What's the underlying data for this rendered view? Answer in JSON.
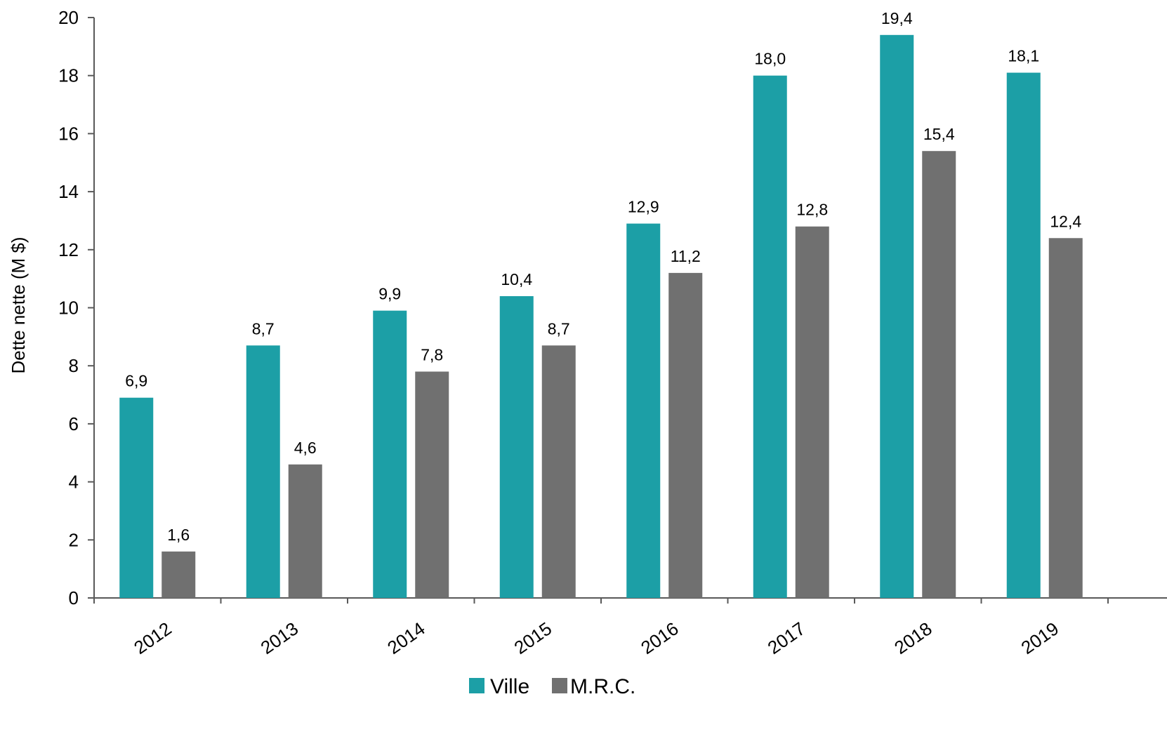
{
  "chart_data": {
    "type": "bar",
    "title": "",
    "xlabel": "",
    "ylabel": "Dette nette (M $)",
    "ylim": [
      0,
      20
    ],
    "y_ticks": [
      0,
      2,
      4,
      6,
      8,
      10,
      12,
      14,
      16,
      18,
      20
    ],
    "y_tick_labels": [
      "0",
      "2",
      "4",
      "6",
      "8",
      "10",
      "12",
      "14",
      "16",
      "18",
      "20"
    ],
    "categories": [
      "2012",
      "2013",
      "2014",
      "2015",
      "2016",
      "2017",
      "2018",
      "2019"
    ],
    "series": [
      {
        "name": "Ville",
        "color": "#1C9FA6",
        "values": [
          6.9,
          8.7,
          9.9,
          10.4,
          12.9,
          18.0,
          19.4,
          18.1
        ],
        "labels": [
          "6,9",
          "8,7",
          "9,9",
          "10,4",
          "12,9",
          "18,0",
          "19,4",
          "18,1"
        ]
      },
      {
        "name": "M.R.C.",
        "color": "#707070",
        "values": [
          1.6,
          4.6,
          7.8,
          8.7,
          11.2,
          12.8,
          15.4,
          12.4
        ],
        "labels": [
          "1,6",
          "4,6",
          "7,8",
          "8,7",
          "11,2",
          "12,8",
          "15,4",
          "12,4"
        ]
      }
    ],
    "grid": false,
    "legend_position": "bottom-center",
    "x_tick_rotation": "diagonal"
  }
}
